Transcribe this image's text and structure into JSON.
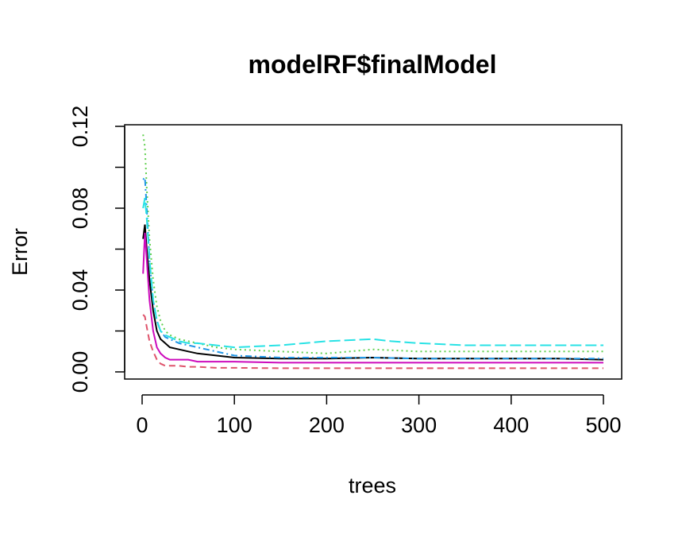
{
  "chart_data": {
    "type": "line",
    "title": "modelRF$finalModel",
    "xlabel": "trees",
    "ylabel": "Error",
    "xlim": [
      0,
      500
    ],
    "ylim": [
      0,
      0.12
    ],
    "x_ticks": [
      0,
      100,
      200,
      300,
      400,
      500
    ],
    "x_tick_labels": [
      "0",
      "100",
      "200",
      "300",
      "400",
      "500"
    ],
    "y_ticks": [
      0.0,
      0.04,
      0.08,
      0.12
    ],
    "y_tick_labels": [
      "0.00",
      "0.04",
      "0.08",
      "0.12"
    ],
    "grid": false,
    "legend": "none",
    "series": [
      {
        "color": "#000000",
        "dash": "solid",
        "x": [
          1,
          3,
          5,
          8,
          12,
          16,
          20,
          25,
          30,
          40,
          50,
          60,
          80,
          100,
          150,
          200,
          250,
          300,
          350,
          400,
          450,
          500
        ],
        "y": [
          0.065,
          0.072,
          0.06,
          0.045,
          0.03,
          0.02,
          0.016,
          0.014,
          0.012,
          0.011,
          0.01,
          0.009,
          0.008,
          0.007,
          0.0065,
          0.0065,
          0.007,
          0.0065,
          0.0065,
          0.0065,
          0.0065,
          0.006
        ]
      },
      {
        "color": "#DF536B",
        "dash": "dashed",
        "x": [
          1,
          3,
          5,
          8,
          12,
          16,
          20,
          25,
          30,
          40,
          50,
          60,
          80,
          100,
          150,
          200,
          250,
          300,
          350,
          400,
          450,
          500
        ],
        "y": [
          0.028,
          0.027,
          0.022,
          0.015,
          0.01,
          0.006,
          0.004,
          0.003,
          0.003,
          0.003,
          0.0025,
          0.0025,
          0.002,
          0.002,
          0.0018,
          0.0018,
          0.0018,
          0.0018,
          0.0018,
          0.0018,
          0.0018,
          0.0018
        ]
      },
      {
        "color": "#61D04F",
        "dash": "dotted",
        "x": [
          1,
          3,
          5,
          8,
          12,
          16,
          20,
          25,
          30,
          40,
          50,
          60,
          80,
          100,
          150,
          200,
          250,
          300,
          350,
          400,
          450,
          500
        ],
        "y": [
          0.116,
          0.11,
          0.09,
          0.065,
          0.045,
          0.032,
          0.025,
          0.02,
          0.018,
          0.016,
          0.015,
          0.014,
          0.012,
          0.011,
          0.01,
          0.009,
          0.011,
          0.01,
          0.01,
          0.01,
          0.01,
          0.01
        ]
      },
      {
        "color": "#2297E6",
        "dash": "dotdash",
        "x": [
          1,
          3,
          5,
          8,
          12,
          16,
          20,
          25,
          30,
          40,
          50,
          60,
          80,
          100,
          150,
          200,
          250,
          300,
          350,
          400,
          450,
          500
        ],
        "y": [
          0.094,
          0.095,
          0.08,
          0.055,
          0.035,
          0.025,
          0.02,
          0.017,
          0.016,
          0.014,
          0.013,
          0.012,
          0.01,
          0.008,
          0.007,
          0.007,
          0.007,
          0.0065,
          0.0065,
          0.0065,
          0.0065,
          0.0065
        ]
      },
      {
        "color": "#28E2E5",
        "dash": "longdash",
        "x": [
          1,
          3,
          5,
          8,
          12,
          16,
          20,
          25,
          30,
          40,
          50,
          60,
          80,
          100,
          150,
          200,
          250,
          270,
          300,
          350,
          400,
          450,
          500
        ],
        "y": [
          0.08,
          0.085,
          0.075,
          0.055,
          0.035,
          0.025,
          0.02,
          0.018,
          0.017,
          0.015,
          0.014,
          0.014,
          0.013,
          0.012,
          0.013,
          0.015,
          0.016,
          0.015,
          0.014,
          0.013,
          0.013,
          0.013,
          0.013
        ]
      },
      {
        "color": "#CD0BBC",
        "dash": "solid",
        "x": [
          1,
          3,
          5,
          8,
          12,
          16,
          20,
          25,
          30,
          40,
          50,
          60,
          80,
          100,
          150,
          200,
          250,
          300,
          350,
          400,
          450,
          500
        ],
        "y": [
          0.048,
          0.068,
          0.055,
          0.035,
          0.02,
          0.012,
          0.009,
          0.007,
          0.006,
          0.006,
          0.006,
          0.005,
          0.005,
          0.005,
          0.0045,
          0.0045,
          0.0045,
          0.0045,
          0.0045,
          0.0045,
          0.0045,
          0.0045
        ]
      }
    ]
  }
}
